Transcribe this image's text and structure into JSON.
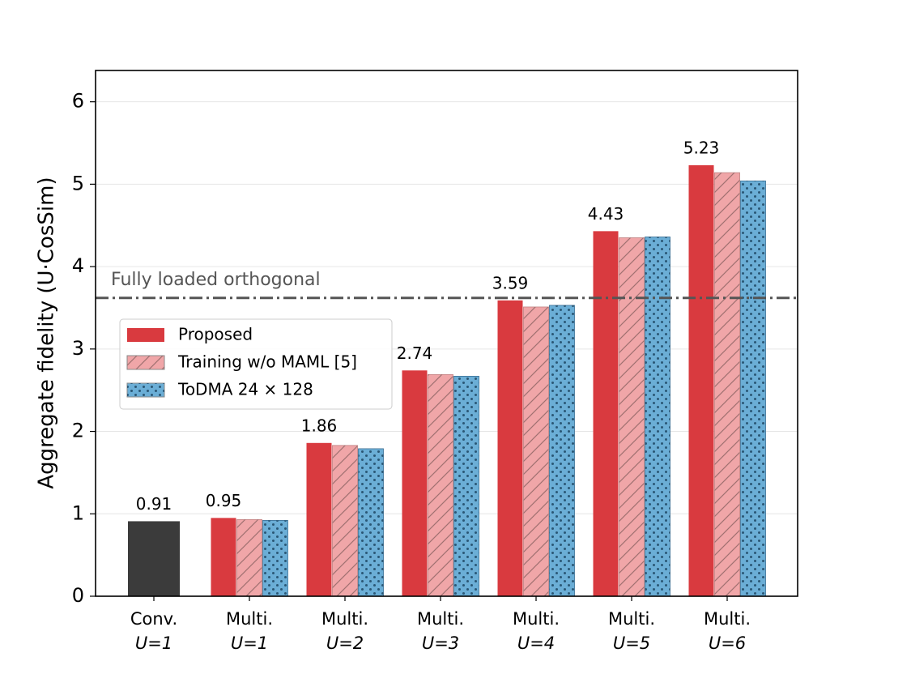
{
  "chart_data": {
    "type": "bar",
    "ylabel": "Aggregate fidelity (U·CosSim)",
    "categories": [
      [
        "Conv.",
        "U=1"
      ],
      [
        "Multi.",
        "U=1"
      ],
      [
        "Multi.",
        "U=2"
      ],
      [
        "Multi.",
        "U=3"
      ],
      [
        "Multi.",
        "U=4"
      ],
      [
        "Multi.",
        "U=5"
      ],
      [
        "Multi.",
        "U=6"
      ]
    ],
    "series": [
      {
        "color": "#3b3b3b",
        "values": [
          0.91,
          null,
          null,
          null,
          null,
          null,
          null
        ],
        "data_labels": true
      },
      {
        "name": "Proposed",
        "color": "#d93a3f",
        "values": [
          null,
          0.95,
          1.86,
          2.74,
          3.59,
          4.43,
          5.23
        ],
        "data_labels": true
      },
      {
        "name": "Training w/o MAML [5]",
        "color": "#f0a6a8",
        "hatch": "diagonal",
        "values": [
          null,
          0.93,
          1.83,
          2.69,
          3.51,
          4.35,
          5.14
        ]
      },
      {
        "name": "ToDMA 24 × 128",
        "color": "#6baed6",
        "hatch": "dots",
        "values": [
          null,
          0.92,
          1.79,
          2.67,
          3.53,
          4.36,
          5.04
        ]
      }
    ],
    "reference_line": {
      "value": 3.62,
      "label": "Fully loaded orthogonal"
    },
    "ylim": [
      0,
      6.38
    ],
    "yticks": [
      0,
      1,
      2,
      3,
      4,
      5,
      6
    ],
    "grid": true,
    "legend": "left"
  }
}
